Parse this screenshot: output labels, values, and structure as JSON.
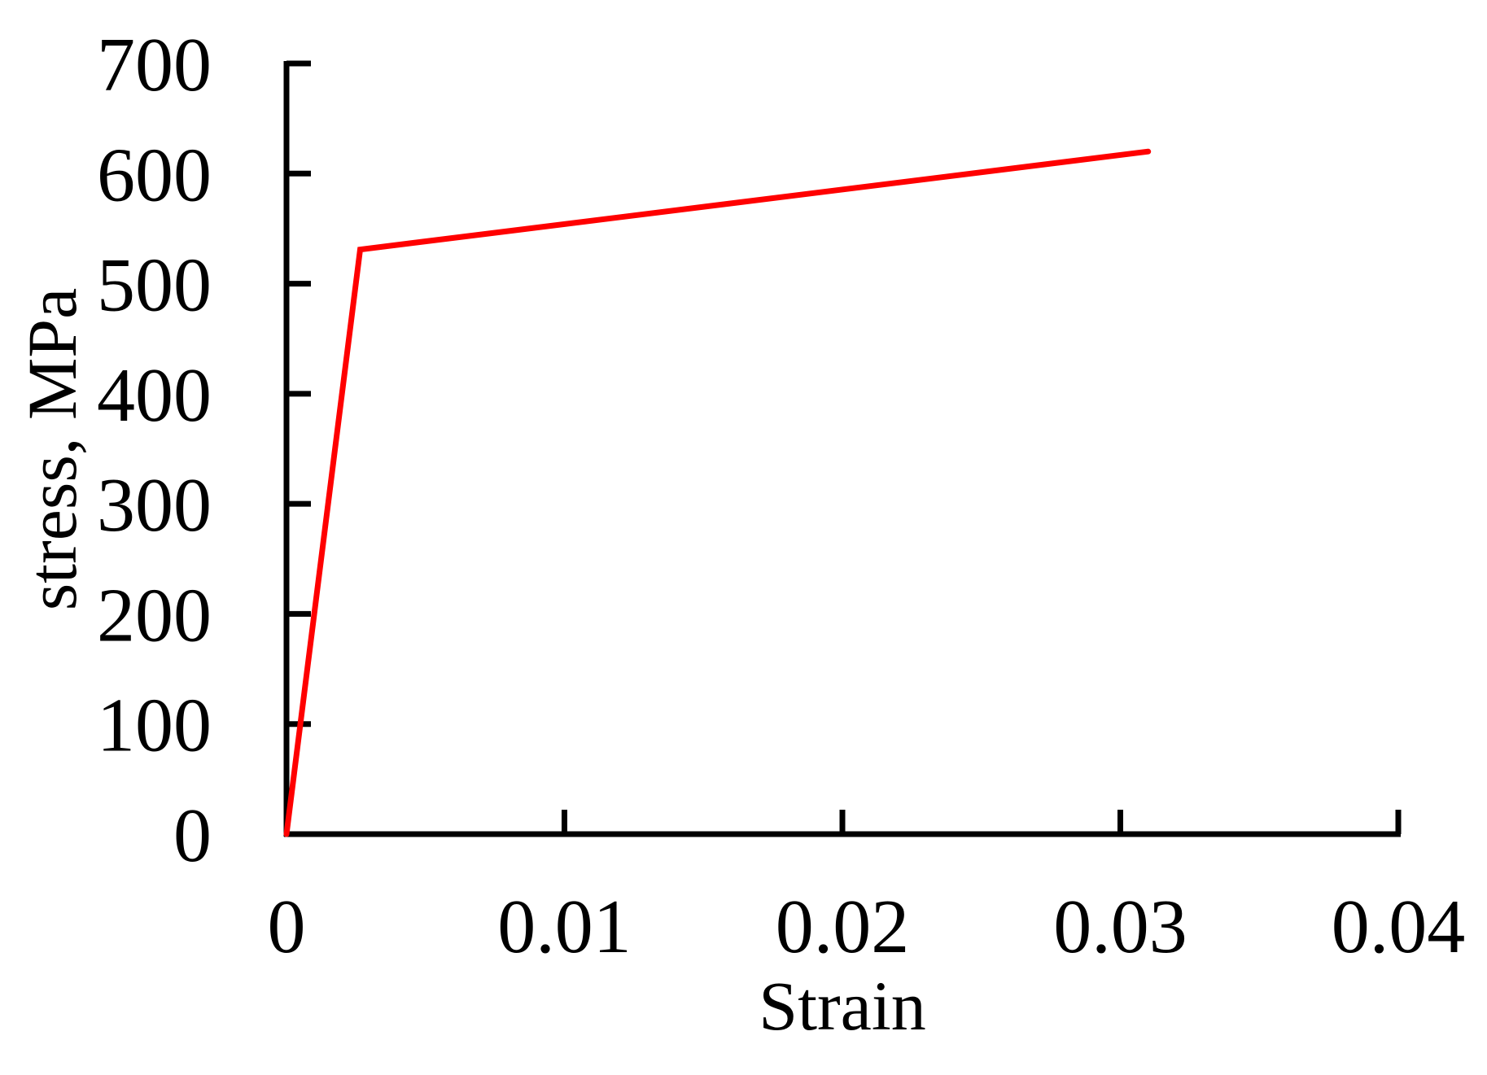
{
  "chart_data": {
    "type": "line",
    "title": "",
    "xlabel": "Strain",
    "ylabel": "stress, MPa",
    "xlim": [
      0,
      0.04
    ],
    "ylim": [
      0,
      700
    ],
    "x_ticks": [
      0,
      0.01,
      0.02,
      0.03,
      0.04
    ],
    "x_tick_labels": [
      "0",
      "0.01",
      "0.02",
      "0.03",
      "0.04"
    ],
    "y_ticks": [
      0,
      100,
      200,
      300,
      400,
      500,
      600,
      700
    ],
    "y_tick_labels": [
      "0",
      "100",
      "200",
      "300",
      "400",
      "500",
      "600",
      "700"
    ],
    "grid": false,
    "legend": "none",
    "series": [
      {
        "color": "#ff0000",
        "points": [
          {
            "x": 0,
            "y": 0
          },
          {
            "x": 0.00265,
            "y": 531
          },
          {
            "x": 0.031,
            "y": 620
          }
        ]
      }
    ]
  }
}
